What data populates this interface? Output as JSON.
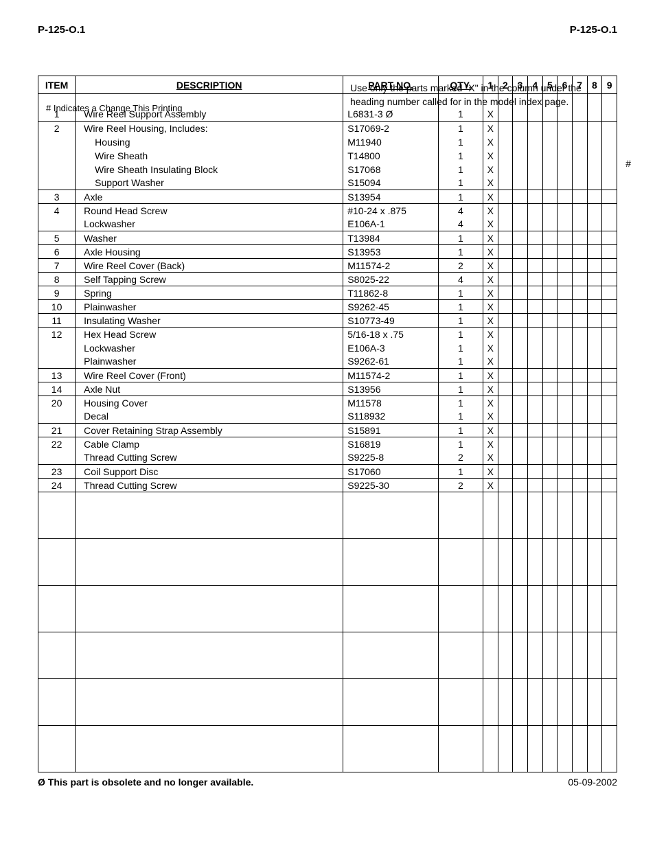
{
  "header": {
    "left": "P-125-O.1",
    "right": "P-125-O.1"
  },
  "notes": {
    "change_indicator": "# Indicates a Change This Printing",
    "use_note": "Use only the parts marked \"X\" in the column under the heading number called for in the model index page."
  },
  "columns": {
    "item": "ITEM",
    "desc": "DESCRIPTION",
    "part": "PART NO.",
    "qty": "QTY.",
    "x": [
      "1",
      "2",
      "3",
      "4",
      "5",
      "6",
      "7",
      "8",
      "9"
    ]
  },
  "hash_mark": "#",
  "rows": [
    {
      "sep": false,
      "item": "",
      "desc": "",
      "sub": false,
      "part": "",
      "markD": false,
      "qty": "",
      "x": [
        "",
        "",
        "",
        "",
        "",
        "",
        "",
        "",
        ""
      ],
      "spacer": true
    },
    {
      "sep": false,
      "item": "1",
      "desc": "Wire Reel Support Assembly",
      "sub": false,
      "part": "L6831-3",
      "markD": true,
      "qty": "1",
      "x": [
        "X",
        "",
        "",
        "",
        "",
        "",
        "",
        "",
        ""
      ]
    },
    {
      "sep": true,
      "item": "2",
      "desc": "Wire Reel Housing, Includes:",
      "sub": false,
      "part": "S17069-2",
      "markD": false,
      "qty": "1",
      "x": [
        "X",
        "",
        "",
        "",
        "",
        "",
        "",
        "",
        ""
      ]
    },
    {
      "sep": false,
      "item": "",
      "desc": "Housing",
      "sub": true,
      "part": "M11940",
      "markD": false,
      "qty": "1",
      "x": [
        "X",
        "",
        "",
        "",
        "",
        "",
        "",
        "",
        ""
      ]
    },
    {
      "sep": false,
      "item": "",
      "desc": "Wire Sheath",
      "sub": true,
      "part": "T14800",
      "markD": false,
      "qty": "1",
      "x": [
        "X",
        "",
        "",
        "",
        "",
        "",
        "",
        "",
        ""
      ]
    },
    {
      "sep": false,
      "item": "",
      "desc": "Wire Sheath Insulating Block",
      "sub": true,
      "part": "S17068",
      "markD": false,
      "qty": "1",
      "x": [
        "X",
        "",
        "",
        "",
        "",
        "",
        "",
        "",
        ""
      ]
    },
    {
      "sep": false,
      "item": "",
      "desc": "Support Washer",
      "sub": true,
      "part": "S15094",
      "markD": false,
      "qty": "1",
      "x": [
        "X",
        "",
        "",
        "",
        "",
        "",
        "",
        "",
        ""
      ]
    },
    {
      "sep": true,
      "item": "3",
      "desc": "Axle",
      "sub": false,
      "part": "S13954",
      "markD": false,
      "qty": "1",
      "x": [
        "X",
        "",
        "",
        "",
        "",
        "",
        "",
        "",
        ""
      ]
    },
    {
      "sep": true,
      "item": "4",
      "desc": "Round Head Screw",
      "sub": false,
      "part": "#10-24 x .875",
      "markD": false,
      "qty": "4",
      "x": [
        "X",
        "",
        "",
        "",
        "",
        "",
        "",
        "",
        ""
      ]
    },
    {
      "sep": false,
      "item": "",
      "desc": "Lockwasher",
      "sub": false,
      "part": "E106A-1",
      "markD": false,
      "qty": "4",
      "x": [
        "X",
        "",
        "",
        "",
        "",
        "",
        "",
        "",
        ""
      ]
    },
    {
      "sep": true,
      "item": "5",
      "desc": "Washer",
      "sub": false,
      "part": "T13984",
      "markD": false,
      "qty": "1",
      "x": [
        "X",
        "",
        "",
        "",
        "",
        "",
        "",
        "",
        ""
      ]
    },
    {
      "sep": true,
      "item": "6",
      "desc": "Axle Housing",
      "sub": false,
      "part": "S13953",
      "markD": false,
      "qty": "1",
      "x": [
        "X",
        "",
        "",
        "",
        "",
        "",
        "",
        "",
        ""
      ]
    },
    {
      "sep": true,
      "item": "7",
      "desc": "Wire Reel Cover (Back)",
      "sub": false,
      "part": "M11574-2",
      "markD": false,
      "qty": "2",
      "x": [
        "X",
        "",
        "",
        "",
        "",
        "",
        "",
        "",
        ""
      ]
    },
    {
      "sep": true,
      "item": "8",
      "desc": "Self Tapping Screw",
      "sub": false,
      "part": "S8025-22",
      "markD": false,
      "qty": "4",
      "x": [
        "X",
        "",
        "",
        "",
        "",
        "",
        "",
        "",
        ""
      ]
    },
    {
      "sep": true,
      "item": "9",
      "desc": "Spring",
      "sub": false,
      "part": "T11862-8",
      "markD": false,
      "qty": "1",
      "x": [
        "X",
        "",
        "",
        "",
        "",
        "",
        "",
        "",
        ""
      ]
    },
    {
      "sep": true,
      "item": "10",
      "desc": "Plainwasher",
      "sub": false,
      "part": "S9262-45",
      "markD": false,
      "qty": "1",
      "x": [
        "X",
        "",
        "",
        "",
        "",
        "",
        "",
        "",
        ""
      ]
    },
    {
      "sep": true,
      "item": "11",
      "desc": "Insulating Washer",
      "sub": false,
      "part": "S10773-49",
      "markD": false,
      "qty": "1",
      "x": [
        "X",
        "",
        "",
        "",
        "",
        "",
        "",
        "",
        ""
      ]
    },
    {
      "sep": true,
      "item": "12",
      "desc": "Hex Head Screw",
      "sub": false,
      "part": "5/16-18 x .75",
      "markD": false,
      "qty": "1",
      "x": [
        "X",
        "",
        "",
        "",
        "",
        "",
        "",
        "",
        ""
      ]
    },
    {
      "sep": false,
      "item": "",
      "desc": "Lockwasher",
      "sub": false,
      "part": "E106A-3",
      "markD": false,
      "qty": "1",
      "x": [
        "X",
        "",
        "",
        "",
        "",
        "",
        "",
        "",
        ""
      ]
    },
    {
      "sep": false,
      "item": "",
      "desc": "Plainwasher",
      "sub": false,
      "part": "S9262-61",
      "markD": false,
      "qty": "1",
      "x": [
        "X",
        "",
        "",
        "",
        "",
        "",
        "",
        "",
        ""
      ]
    },
    {
      "sep": true,
      "item": "13",
      "desc": "Wire Reel Cover (Front)",
      "sub": false,
      "part": "M11574-2",
      "markD": false,
      "qty": "1",
      "x": [
        "X",
        "",
        "",
        "",
        "",
        "",
        "",
        "",
        ""
      ]
    },
    {
      "sep": true,
      "item": "14",
      "desc": "Axle Nut",
      "sub": false,
      "part": "S13956",
      "markD": false,
      "qty": "1",
      "x": [
        "X",
        "",
        "",
        "",
        "",
        "",
        "",
        "",
        ""
      ]
    },
    {
      "sep": true,
      "item": "20",
      "desc": "Housing Cover",
      "sub": false,
      "part": "M11578",
      "markD": false,
      "qty": "1",
      "x": [
        "X",
        "",
        "",
        "",
        "",
        "",
        "",
        "",
        ""
      ]
    },
    {
      "sep": false,
      "item": "",
      "desc": "Decal",
      "sub": false,
      "part": "S118932",
      "markD": false,
      "qty": "1",
      "x": [
        "X",
        "",
        "",
        "",
        "",
        "",
        "",
        "",
        ""
      ]
    },
    {
      "sep": true,
      "item": "21",
      "desc": "Cover Retaining Strap Assembly",
      "sub": false,
      "part": "S15891",
      "markD": false,
      "qty": "1",
      "x": [
        "X",
        "",
        "",
        "",
        "",
        "",
        "",
        "",
        ""
      ]
    },
    {
      "sep": true,
      "item": "22",
      "desc": "Cable Clamp",
      "sub": false,
      "part": "S16819",
      "markD": false,
      "qty": "1",
      "x": [
        "X",
        "",
        "",
        "",
        "",
        "",
        "",
        "",
        ""
      ]
    },
    {
      "sep": false,
      "item": "",
      "desc": "Thread Cutting Screw",
      "sub": false,
      "part": "S9225-8",
      "markD": false,
      "qty": "2",
      "x": [
        "X",
        "",
        "",
        "",
        "",
        "",
        "",
        "",
        ""
      ]
    },
    {
      "sep": true,
      "item": "23",
      "desc": "Coil Support Disc",
      "sub": false,
      "part": "S17060",
      "markD": false,
      "qty": "1",
      "x": [
        "X",
        "",
        "",
        "",
        "",
        "",
        "",
        "",
        ""
      ]
    },
    {
      "sep": true,
      "item": "24",
      "desc": "Thread Cutting Screw",
      "sub": false,
      "part": "S9225-30",
      "markD": false,
      "qty": "2",
      "x": [
        "X",
        "",
        "",
        "",
        "",
        "",
        "",
        "",
        ""
      ]
    }
  ],
  "blank_rows": 6,
  "footer": {
    "obsolete": "Ø   This part is obsolete and no longer available.",
    "date": "05-09-2002"
  },
  "obsolete_glyph": "Ø"
}
